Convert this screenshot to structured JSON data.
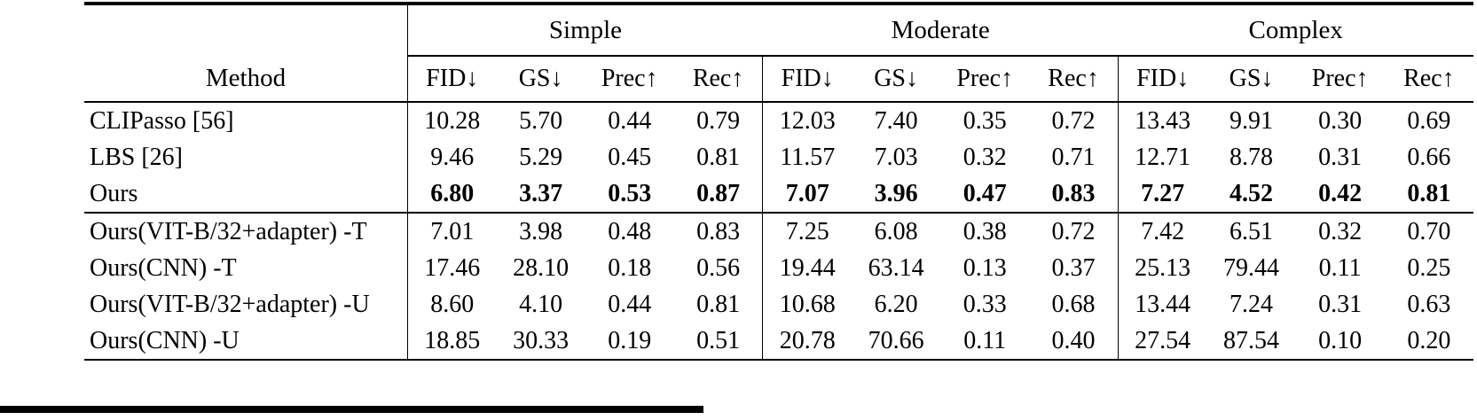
{
  "page": {
    "background": "#ffffff",
    "text_color": "#000000"
  },
  "table": {
    "method_header": "Method",
    "groups": [
      {
        "label": "Simple"
      },
      {
        "label": "Moderate"
      },
      {
        "label": "Complex"
      }
    ],
    "metrics": [
      "FID↓",
      "GS↓",
      "Prec↑",
      "Rec↑"
    ],
    "rows": [
      {
        "method": "CLIPasso [56]",
        "bold": false,
        "values": [
          "10.28",
          "5.70",
          "0.44",
          "0.79",
          "12.03",
          "7.40",
          "0.35",
          "0.72",
          "13.43",
          "9.91",
          "0.30",
          "0.69"
        ]
      },
      {
        "method": "LBS [26]",
        "bold": false,
        "values": [
          "9.46",
          "5.29",
          "0.45",
          "0.81",
          "11.57",
          "7.03",
          "0.32",
          "0.71",
          "12.71",
          "8.78",
          "0.31",
          "0.66"
        ]
      },
      {
        "method": "Ours",
        "bold": true,
        "values": [
          "6.80",
          "3.37",
          "0.53",
          "0.87",
          "7.07",
          "3.96",
          "0.47",
          "0.83",
          "7.27",
          "4.52",
          "0.42",
          "0.81"
        ]
      },
      {
        "method": "Ours(VIT-B/32+adapter) -T",
        "bold": false,
        "values": [
          "7.01",
          "3.98",
          "0.48",
          "0.83",
          "7.25",
          "6.08",
          "0.38",
          "0.72",
          "7.42",
          "6.51",
          "0.32",
          "0.70"
        ]
      },
      {
        "method": "Ours(CNN) -T",
        "bold": false,
        "values": [
          "17.46",
          "28.10",
          "0.18",
          "0.56",
          "19.44",
          "63.14",
          "0.13",
          "0.37",
          "25.13",
          "79.44",
          "0.11",
          "0.25"
        ]
      },
      {
        "method": "Ours(VIT-B/32+adapter) -U",
        "bold": false,
        "values": [
          "8.60",
          "4.10",
          "0.44",
          "0.81",
          "10.68",
          "6.20",
          "0.33",
          "0.68",
          "13.44",
          "7.24",
          "0.31",
          "0.63"
        ]
      },
      {
        "method": "Ours(CNN) -U",
        "bold": false,
        "values": [
          "18.85",
          "30.33",
          "0.19",
          "0.51",
          "20.78",
          "70.66",
          "0.11",
          "0.40",
          "27.54",
          "87.54",
          "0.10",
          "0.20"
        ]
      }
    ]
  }
}
